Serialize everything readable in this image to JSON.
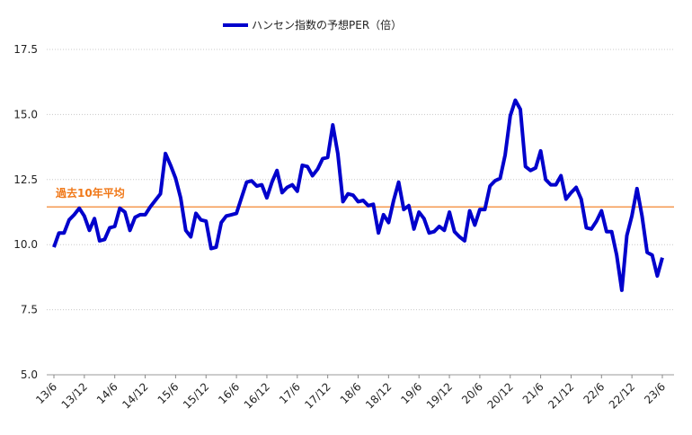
{
  "chart_data": {
    "type": "line",
    "title": "",
    "xlabel": "",
    "ylabel": "",
    "ylim": [
      5.0,
      17.5
    ],
    "yticks": [
      "5.0",
      "7.5",
      "10.0",
      "12.5",
      "15.0",
      "17.5"
    ],
    "xticks": [
      "13/6",
      "13/12",
      "14/6",
      "14/12",
      "15/6",
      "15/12",
      "16/6",
      "16/12",
      "17/6",
      "17/12",
      "18/6",
      "18/12",
      "19/6",
      "19/12",
      "20/6",
      "20/12",
      "21/6",
      "21/12",
      "22/6",
      "22/12",
      "23/6"
    ],
    "grid": "horizontal dotted",
    "legend_position": "top-center",
    "series": [
      {
        "name": "ハンセン指数の予想PER（倍）",
        "color": "#0000cc",
        "frequency": "monthly, 2013/6 - 2023/6",
        "values": [
          9.9,
          10.45,
          10.45,
          10.95,
          11.15,
          11.4,
          11.1,
          10.55,
          11.0,
          10.15,
          10.2,
          10.65,
          10.7,
          11.4,
          11.25,
          10.55,
          11.05,
          11.15,
          11.15,
          11.45,
          11.7,
          11.95,
          13.5,
          13.05,
          12.55,
          11.8,
          10.55,
          10.3,
          11.2,
          10.95,
          10.9,
          9.85,
          9.9,
          10.85,
          11.1,
          11.15,
          11.2,
          11.8,
          12.4,
          12.45,
          12.25,
          12.3,
          11.8,
          12.4,
          12.85,
          12.0,
          12.2,
          12.3,
          12.05,
          13.05,
          13.0,
          12.65,
          12.9,
          13.3,
          13.35,
          14.6,
          13.5,
          11.65,
          11.95,
          11.9,
          11.65,
          11.7,
          11.5,
          11.55,
          10.45,
          11.15,
          10.85,
          11.7,
          12.4,
          11.35,
          11.5,
          10.6,
          11.25,
          11.0,
          10.45,
          10.5,
          10.7,
          10.55,
          11.25,
          10.5,
          10.3,
          10.15,
          11.3,
          10.75,
          11.35,
          11.35,
          12.25,
          12.45,
          12.55,
          13.45,
          14.95,
          15.55,
          15.2,
          13.0,
          12.85,
          12.95,
          13.6,
          12.5,
          12.3,
          12.3,
          12.65,
          11.75,
          12.0,
          12.2,
          11.75,
          10.65,
          10.6,
          10.9,
          11.3,
          10.5,
          10.5,
          9.6,
          8.25,
          10.35,
          11.1,
          12.15,
          11.1,
          9.7,
          9.6,
          8.8,
          9.5
        ]
      }
    ],
    "average_line": {
      "label": "過去10年平均",
      "value": 11.45,
      "color": "#f07818"
    }
  }
}
